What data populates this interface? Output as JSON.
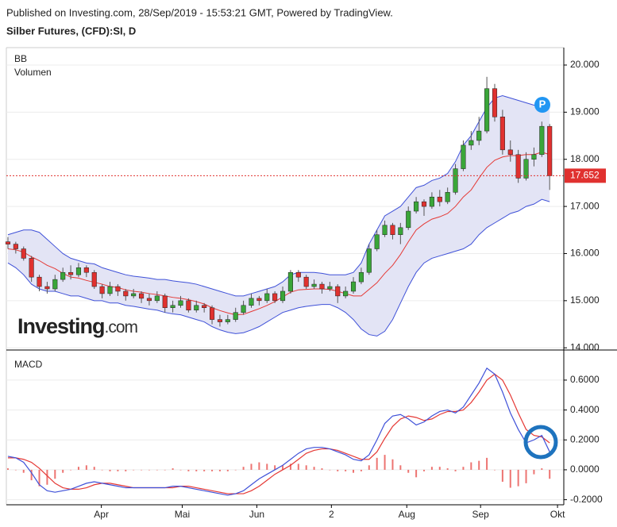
{
  "header": {
    "published": "Published on Investing.com, 28/Sep/2019 - 15:53:21 GMT, Powered by TradingView.",
    "instrument": "Silber Futures, (CFD):SI, D"
  },
  "logo": {
    "brand": "Investing",
    "suffix": ".com"
  },
  "chart_data": [
    {
      "type": "candlestick",
      "labels": [
        "BB",
        "Volumen"
      ],
      "badge": "P",
      "ylim": [
        13.97,
        20.37
      ],
      "yticks": [
        {
          "value": 14,
          "label": "14.000"
        },
        {
          "value": 15,
          "label": "15.000"
        },
        {
          "value": 16,
          "label": "16.000"
        },
        {
          "value": 17,
          "label": "17.000"
        },
        {
          "value": 18,
          "label": "18.000"
        },
        {
          "value": 19,
          "label": "19.000"
        },
        {
          "value": 20,
          "label": "20.000"
        }
      ],
      "grid": true,
      "last": 17.652,
      "last_color": "#e0312f",
      "up_color": "#3aa639",
      "down_color": "#e0312f",
      "ohlc": [
        [
          16.25,
          16.35,
          16.1,
          16.2
        ],
        [
          16.2,
          16.25,
          16.0,
          16.1
        ],
        [
          16.1,
          16.15,
          15.85,
          15.9
        ],
        [
          15.9,
          15.95,
          15.4,
          15.5
        ],
        [
          15.5,
          15.55,
          15.2,
          15.3
        ],
        [
          15.3,
          15.4,
          15.15,
          15.25
        ],
        [
          15.25,
          15.55,
          15.2,
          15.45
        ],
        [
          15.45,
          15.7,
          15.4,
          15.6
        ],
        [
          15.6,
          15.75,
          15.45,
          15.55
        ],
        [
          15.55,
          15.8,
          15.5,
          15.7
        ],
        [
          15.7,
          15.75,
          15.5,
          15.6
        ],
        [
          15.6,
          15.65,
          15.25,
          15.3
        ],
        [
          15.3,
          15.35,
          15.05,
          15.15
        ],
        [
          15.15,
          15.4,
          15.1,
          15.3
        ],
        [
          15.3,
          15.35,
          15.1,
          15.2
        ],
        [
          15.2,
          15.25,
          15.0,
          15.1
        ],
        [
          15.1,
          15.25,
          15.05,
          15.15
        ],
        [
          15.15,
          15.2,
          14.95,
          15.05
        ],
        [
          15.05,
          15.15,
          14.9,
          15.0
        ],
        [
          15.0,
          15.2,
          14.95,
          15.1
        ],
        [
          15.1,
          15.15,
          14.75,
          14.85
        ],
        [
          14.85,
          15.0,
          14.75,
          14.9
        ],
        [
          14.9,
          15.1,
          14.85,
          15.0
        ],
        [
          15.0,
          15.05,
          14.75,
          14.8
        ],
        [
          14.8,
          15.0,
          14.75,
          14.9
        ],
        [
          14.9,
          14.95,
          14.75,
          14.85
        ],
        [
          14.85,
          14.9,
          14.5,
          14.6
        ],
        [
          14.6,
          14.7,
          14.45,
          14.55
        ],
        [
          14.55,
          14.7,
          14.5,
          14.6
        ],
        [
          14.6,
          14.85,
          14.55,
          14.75
        ],
        [
          14.75,
          15.0,
          14.7,
          14.9
        ],
        [
          14.9,
          15.15,
          14.85,
          15.05
        ],
        [
          15.05,
          15.1,
          14.9,
          15.0
        ],
        [
          15.0,
          15.25,
          14.95,
          15.15
        ],
        [
          15.15,
          15.2,
          14.95,
          15.0
        ],
        [
          15.0,
          15.3,
          14.95,
          15.2
        ],
        [
          15.2,
          15.65,
          15.15,
          15.6
        ],
        [
          15.6,
          15.65,
          15.4,
          15.5
        ],
        [
          15.5,
          15.55,
          15.25,
          15.3
        ],
        [
          15.3,
          15.45,
          15.25,
          15.35
        ],
        [
          15.35,
          15.4,
          15.15,
          15.25
        ],
        [
          15.25,
          15.4,
          15.2,
          15.3
        ],
        [
          15.3,
          15.35,
          14.95,
          15.1
        ],
        [
          15.1,
          15.3,
          15.05,
          15.2
        ],
        [
          15.2,
          15.5,
          15.15,
          15.4
        ],
        [
          15.4,
          15.7,
          15.35,
          15.6
        ],
        [
          15.6,
          16.2,
          15.55,
          16.1
        ],
        [
          16.1,
          16.5,
          16.05,
          16.4
        ],
        [
          16.4,
          16.7,
          16.35,
          16.6
        ],
        [
          16.6,
          16.65,
          16.3,
          16.4
        ],
        [
          16.4,
          16.65,
          16.2,
          16.55
        ],
        [
          16.55,
          17.0,
          16.5,
          16.9
        ],
        [
          16.9,
          17.2,
          16.85,
          17.1
        ],
        [
          17.1,
          17.15,
          16.8,
          17.0
        ],
        [
          17.0,
          17.3,
          16.95,
          17.2
        ],
        [
          17.2,
          17.35,
          17.0,
          17.1
        ],
        [
          17.1,
          17.4,
          17.05,
          17.3
        ],
        [
          17.3,
          17.9,
          17.25,
          17.8
        ],
        [
          17.8,
          18.4,
          17.75,
          18.3
        ],
        [
          18.3,
          18.6,
          18.2,
          18.4
        ],
        [
          18.4,
          18.9,
          18.3,
          18.6
        ],
        [
          18.6,
          19.75,
          18.55,
          19.5
        ],
        [
          19.5,
          19.6,
          18.8,
          18.9
        ],
        [
          18.9,
          19.05,
          18.1,
          18.2
        ],
        [
          18.2,
          18.4,
          17.95,
          18.1
        ],
        [
          18.1,
          18.2,
          17.5,
          17.6
        ],
        [
          17.6,
          18.15,
          17.55,
          18.0
        ],
        [
          18.0,
          18.25,
          17.85,
          18.1
        ],
        [
          18.1,
          18.8,
          18.05,
          18.7
        ],
        [
          18.7,
          18.75,
          17.35,
          17.65
        ]
      ],
      "bands": {
        "color": "#3f51d8",
        "middle_color": "#e53935",
        "fill": "#e3e4f5",
        "upper": [
          16.4,
          16.45,
          16.5,
          16.5,
          16.45,
          16.3,
          16.15,
          16.0,
          15.9,
          15.85,
          15.8,
          15.78,
          15.7,
          15.65,
          15.6,
          15.55,
          15.52,
          15.5,
          15.48,
          15.45,
          15.45,
          15.42,
          15.4,
          15.38,
          15.35,
          15.3,
          15.25,
          15.2,
          15.15,
          15.1,
          15.1,
          15.15,
          15.2,
          15.25,
          15.3,
          15.4,
          15.55,
          15.6,
          15.6,
          15.6,
          15.58,
          15.55,
          15.55,
          15.55,
          15.6,
          15.8,
          16.2,
          16.5,
          16.8,
          16.9,
          17.0,
          17.2,
          17.4,
          17.45,
          17.55,
          17.6,
          17.7,
          17.95,
          18.3,
          18.5,
          18.8,
          19.1,
          19.3,
          19.35,
          19.3,
          19.25,
          19.2,
          19.15,
          19.15,
          19.1
        ],
        "middle": [
          16.1,
          16.08,
          16.03,
          15.93,
          15.85,
          15.75,
          15.68,
          15.58,
          15.5,
          15.48,
          15.43,
          15.39,
          15.35,
          15.3,
          15.28,
          15.23,
          15.2,
          15.18,
          15.15,
          15.13,
          15.1,
          15.07,
          15.05,
          15.02,
          14.98,
          14.93,
          14.85,
          14.79,
          14.74,
          14.7,
          14.71,
          14.77,
          14.83,
          14.9,
          14.98,
          15.08,
          15.18,
          15.23,
          15.24,
          15.25,
          15.25,
          15.24,
          15.2,
          15.15,
          15.1,
          15.1,
          15.24,
          15.38,
          15.58,
          15.75,
          15.98,
          16.25,
          16.5,
          16.63,
          16.73,
          16.78,
          16.85,
          17.0,
          17.2,
          17.35,
          17.6,
          17.83,
          17.98,
          18.05,
          18.08,
          18.08,
          18.1,
          18.1,
          18.15,
          18.1
        ],
        "lower": [
          15.8,
          15.7,
          15.55,
          15.35,
          15.25,
          15.2,
          15.2,
          15.15,
          15.1,
          15.1,
          15.05,
          15.0,
          15.0,
          14.95,
          14.95,
          14.9,
          14.88,
          14.85,
          14.82,
          14.8,
          14.75,
          14.72,
          14.7,
          14.65,
          14.6,
          14.55,
          14.45,
          14.38,
          14.33,
          14.3,
          14.32,
          14.38,
          14.45,
          14.55,
          14.65,
          14.75,
          14.8,
          14.85,
          14.88,
          14.9,
          14.92,
          14.92,
          14.85,
          14.75,
          14.6,
          14.4,
          14.28,
          14.25,
          14.35,
          14.6,
          14.95,
          15.3,
          15.6,
          15.8,
          15.9,
          15.95,
          16.0,
          16.05,
          16.1,
          16.2,
          16.4,
          16.55,
          16.65,
          16.75,
          16.85,
          16.9,
          17.0,
          17.05,
          17.15,
          17.1
        ]
      }
    },
    {
      "type": "macd",
      "label": "MACD",
      "ylim": [
        -0.234,
        0.796
      ],
      "yticks": [
        {
          "value": -0.2,
          "label": "-0.2000"
        },
        {
          "value": 0,
          "label": "0.0000"
        },
        {
          "value": 0.2,
          "label": "0.2000"
        },
        {
          "value": 0.4,
          "label": "0.4000"
        },
        {
          "value": 0.6,
          "label": "0.6000"
        }
      ],
      "grid": true,
      "xlim": [
        -0.2,
        70.8
      ],
      "xticks": [
        {
          "value": 11.9,
          "label": "Apr"
        },
        {
          "value": 22.2,
          "label": "Mai"
        },
        {
          "value": 31.7,
          "label": "Jun"
        },
        {
          "value": 41.2,
          "label": "2"
        },
        {
          "value": 50.8,
          "label": "Aug"
        },
        {
          "value": 60.2,
          "label": "Sep"
        },
        {
          "value": 70,
          "label": "Okt"
        }
      ],
      "macd_color": "#3f51d8",
      "signal_color": "#e53935",
      "histogram_color": "#e53935",
      "macd": [
        0.09,
        0.08,
        0.05,
        -0.02,
        -0.1,
        -0.14,
        -0.15,
        -0.14,
        -0.13,
        -0.11,
        -0.09,
        -0.08,
        -0.09,
        -0.1,
        -0.11,
        -0.12,
        -0.12,
        -0.12,
        -0.12,
        -0.12,
        -0.12,
        -0.11,
        -0.11,
        -0.12,
        -0.13,
        -0.14,
        -0.15,
        -0.16,
        -0.17,
        -0.16,
        -0.14,
        -0.1,
        -0.06,
        -0.03,
        0.0,
        0.03,
        0.07,
        0.11,
        0.14,
        0.15,
        0.15,
        0.14,
        0.12,
        0.1,
        0.07,
        0.06,
        0.1,
        0.2,
        0.31,
        0.36,
        0.37,
        0.34,
        0.3,
        0.32,
        0.36,
        0.39,
        0.4,
        0.38,
        0.42,
        0.5,
        0.58,
        0.68,
        0.64,
        0.52,
        0.38,
        0.27,
        0.18,
        0.2,
        0.23,
        0.12
      ],
      "signal": [
        0.08,
        0.08,
        0.07,
        0.05,
        0.01,
        -0.04,
        -0.09,
        -0.12,
        -0.13,
        -0.13,
        -0.12,
        -0.1,
        -0.09,
        -0.09,
        -0.1,
        -0.11,
        -0.12,
        -0.12,
        -0.12,
        -0.12,
        -0.12,
        -0.12,
        -0.11,
        -0.11,
        -0.12,
        -0.13,
        -0.14,
        -0.15,
        -0.16,
        -0.16,
        -0.16,
        -0.14,
        -0.11,
        -0.07,
        -0.03,
        0.0,
        0.03,
        0.07,
        0.11,
        0.13,
        0.14,
        0.14,
        0.13,
        0.11,
        0.09,
        0.07,
        0.07,
        0.12,
        0.21,
        0.29,
        0.34,
        0.36,
        0.35,
        0.33,
        0.34,
        0.37,
        0.39,
        0.39,
        0.4,
        0.45,
        0.52,
        0.6,
        0.64,
        0.6,
        0.5,
        0.38,
        0.27,
        0.23,
        0.22,
        0.18
      ],
      "histogram": [
        0.01,
        0.0,
        -0.02,
        -0.07,
        -0.11,
        -0.1,
        -0.06,
        -0.02,
        0.0,
        0.02,
        0.03,
        0.02,
        0.0,
        -0.01,
        -0.01,
        -0.01,
        0.0,
        0.0,
        0.0,
        0.0,
        0.0,
        0.01,
        0.0,
        -0.01,
        -0.01,
        -0.01,
        -0.01,
        -0.01,
        -0.01,
        0.0,
        0.02,
        0.04,
        0.05,
        0.04,
        0.03,
        0.03,
        0.04,
        0.04,
        0.03,
        0.02,
        0.01,
        0.0,
        -0.01,
        -0.01,
        -0.02,
        -0.01,
        0.03,
        0.08,
        0.1,
        0.07,
        0.03,
        -0.02,
        -0.05,
        -0.01,
        0.02,
        0.02,
        0.01,
        -0.01,
        0.02,
        0.05,
        0.06,
        0.08,
        0.0,
        -0.08,
        -0.12,
        -0.11,
        -0.09,
        -0.03,
        0.01,
        -0.06
      ]
    }
  ]
}
